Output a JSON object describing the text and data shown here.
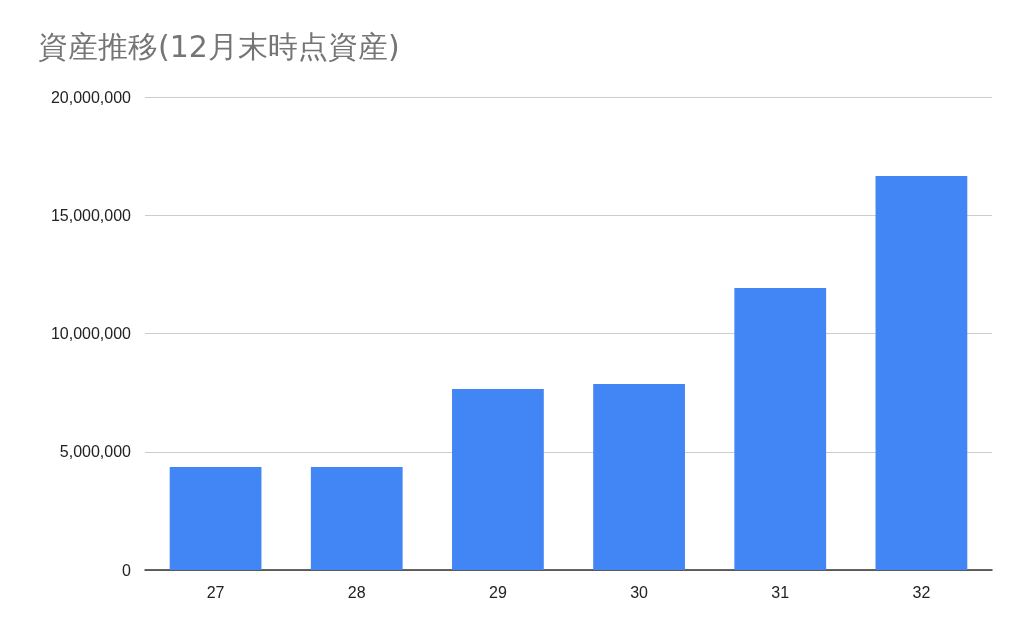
{
  "chart_data": {
    "type": "bar",
    "title": "資産推移(12月末時点資産)",
    "categories": [
      "27",
      "28",
      "29",
      "30",
      "31",
      "32"
    ],
    "values": [
      4360000,
      4360000,
      7650000,
      7860000,
      11920000,
      16660000
    ],
    "color": "#4285f4",
    "ylim": [
      0,
      20000000
    ],
    "yticks": [
      0,
      {
        "value": 5000000,
        "label": "5,000,000"
      },
      {
        "value": 10000000,
        "label": "10,000,000"
      },
      {
        "value": 15000000,
        "label": "15,000,000"
      },
      {
        "value": 20000000,
        "label": "20,000,000"
      }
    ],
    "grid": "y"
  }
}
